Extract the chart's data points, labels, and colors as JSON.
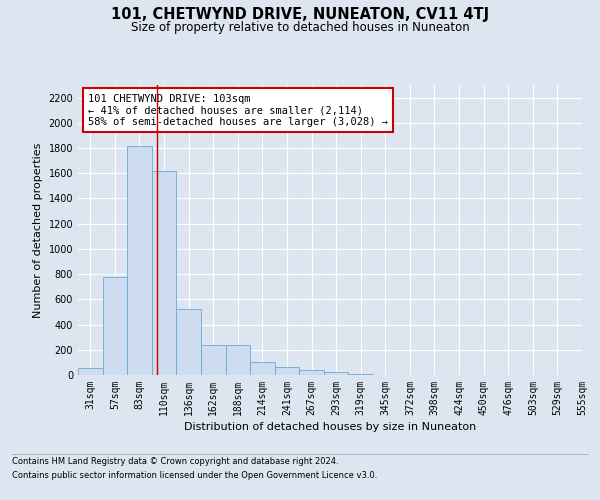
{
  "title": "101, CHETWYND DRIVE, NUNEATON, CV11 4TJ",
  "subtitle": "Size of property relative to detached houses in Nuneaton",
  "xlabel": "Distribution of detached houses by size in Nuneaton",
  "ylabel": "Number of detached properties",
  "bar_values": [
    55,
    775,
    1820,
    1615,
    520,
    240,
    240,
    105,
    60,
    40,
    25,
    10,
    0,
    0,
    0,
    0,
    0,
    0,
    0,
    0
  ],
  "bin_labels": [
    "31sqm",
    "57sqm",
    "83sqm",
    "110sqm",
    "136sqm",
    "162sqm",
    "188sqm",
    "214sqm",
    "241sqm",
    "267sqm",
    "293sqm",
    "319sqm",
    "345sqm",
    "372sqm",
    "398sqm",
    "424sqm",
    "450sqm",
    "476sqm",
    "503sqm",
    "529sqm",
    "555sqm"
  ],
  "bar_color": "#cddcef",
  "bar_edge_color": "#6aaad4",
  "vline_x": 2.73,
  "annotation_text": "101 CHETWYND DRIVE: 103sqm\n← 41% of detached houses are smaller (2,114)\n58% of semi-detached houses are larger (3,028) →",
  "annotation_box_color": "#ffffff",
  "annotation_box_edge_color": "#cc0000",
  "ylim": [
    0,
    2300
  ],
  "yticks": [
    0,
    200,
    400,
    600,
    800,
    1000,
    1200,
    1400,
    1600,
    1800,
    2000,
    2200
  ],
  "footer_line1": "Contains HM Land Registry data © Crown copyright and database right 2024.",
  "footer_line2": "Contains public sector information licensed under the Open Government Licence v3.0.",
  "bg_color": "#dde6f0",
  "plot_bg_color": "#dde6f0",
  "grid_color": "#ffffff",
  "title_fontsize": 10.5,
  "subtitle_fontsize": 8.5,
  "ylabel_fontsize": 8,
  "xlabel_fontsize": 8,
  "tick_fontsize": 7,
  "footer_fontsize": 6.0,
  "annotation_fontsize": 7.5
}
